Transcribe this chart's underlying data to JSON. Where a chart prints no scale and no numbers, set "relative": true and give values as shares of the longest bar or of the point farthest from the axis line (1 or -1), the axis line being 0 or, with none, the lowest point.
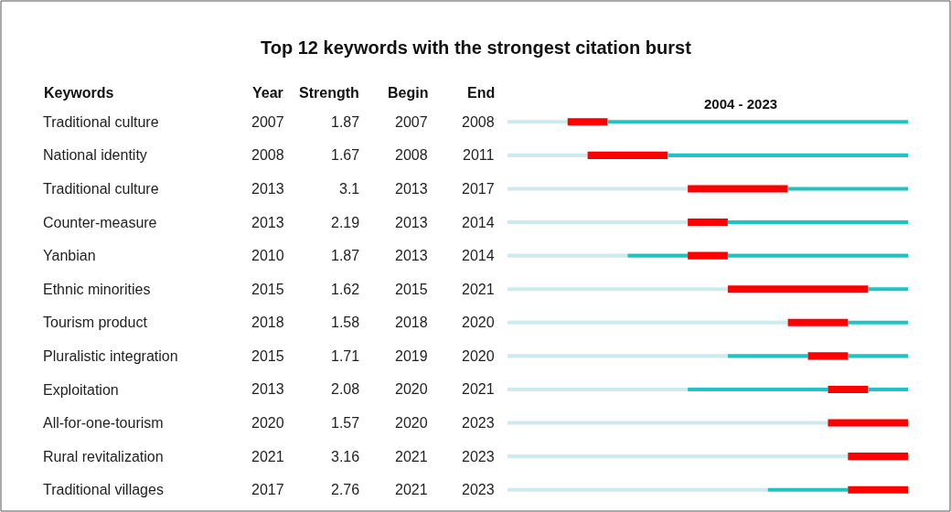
{
  "chart_data": {
    "type": "bar",
    "orientation": "horizontal",
    "title": "Top 12 keywords with the strongest citation burst",
    "categories": [
      "Traditional culture",
      "National identity",
      "Traditional culture",
      "Counter-measure",
      "Yanbian",
      "Ethnic minorities",
      "Tourism product",
      "Pluralistic integration",
      "Exploitation",
      "All-for-one-tourism",
      "Rural revitalization",
      "Traditional villages"
    ],
    "tick_labels": "y",
    "relative": true,
    "stacked": true,
    "annotations": [
      "Keywords",
      "Year",
      "Strength",
      "Begin",
      "End",
      "2004 - 2023",
      "2007",
      "1.87",
      "2007",
      "2008",
      "2008",
      "1.67",
      "2008",
      "2011",
      "2013",
      "3.1",
      "2013",
      "2017",
      "2013",
      "2.19",
      "2013",
      "2014",
      "2010",
      "1.87",
      "2013",
      "2014",
      "2015",
      "1.62",
      "2015",
      "2021",
      "2018",
      "1.58",
      "2018",
      "2020",
      "2015",
      "1.71",
      "2019",
      "2020",
      "2013",
      "2.08",
      "2020",
      "2021",
      "2020",
      "1.57",
      "2020",
      "2023",
      "2021",
      "3.16",
      "2021",
      "2023",
      "2017",
      "2.76",
      "2021",
      "2023"
    ],
    "series": [
      {
        "color": "#cdeaf0",
        "values": [
          0.15,
          0.2,
          0.45,
          0.45,
          0.3,
          0.55,
          0.7,
          0.55,
          0.45,
          0.8,
          0.85,
          0.65
        ]
      },
      {
        "color": "#1ec4c4",
        "values": [
          0,
          0,
          0,
          0,
          0.15,
          0,
          0,
          0.2,
          0.35,
          0,
          0,
          0.2
        ]
      },
      {
        "color": "#ff0000",
        "values": [
          0.1,
          0.2,
          0.25,
          0.1,
          0.1,
          0.35,
          0.15,
          0.1,
          0.1,
          0.2,
          0.15,
          0.15
        ]
      },
      {
        "color": "#1ec4c4",
        "values": [
          0.75,
          0.6,
          0.3,
          0.45,
          0.45,
          0.1,
          0.15,
          0.15,
          0.1,
          0,
          0,
          0
        ]
      }
    ]
  }
}
